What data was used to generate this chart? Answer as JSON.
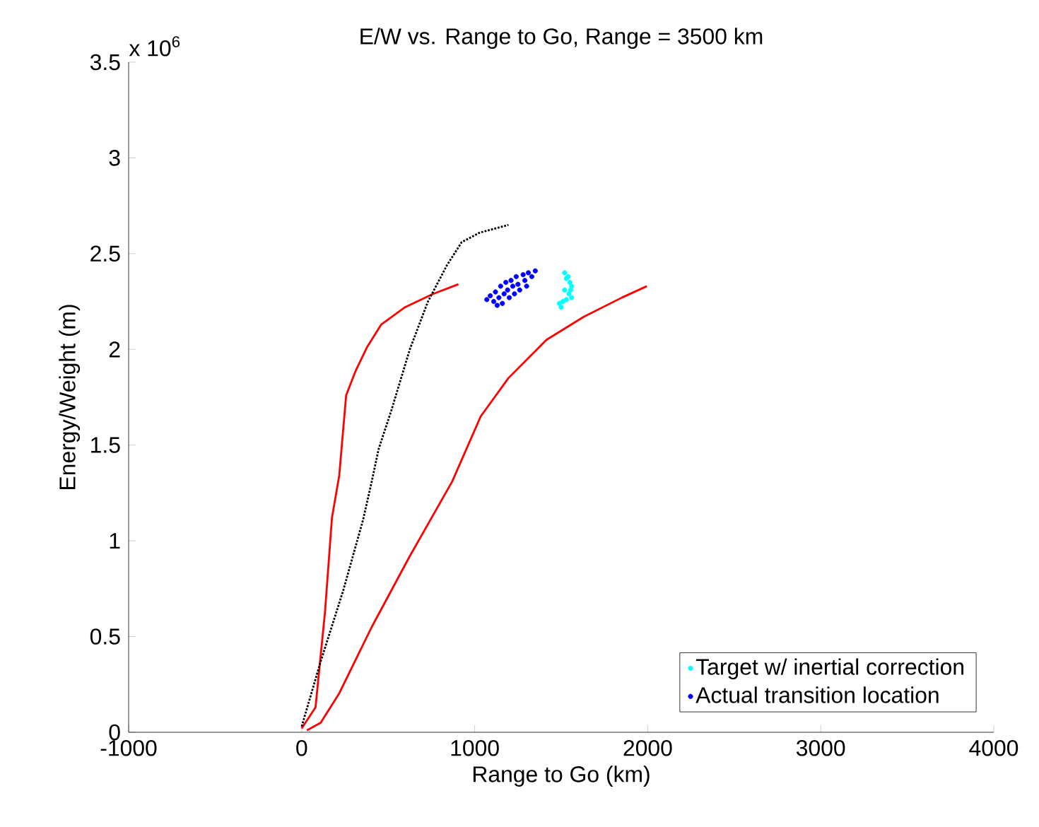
{
  "chart_data": {
    "type": "line",
    "title": "E/W vs. Range to Go, Range = 3500 km",
    "xlabel": "Range to Go (km)",
    "ylabel": "Energy/Weight (m)",
    "annotations": [
      "x 10$^{6}$"
    ],
    "xlim": [
      -1000,
      4000
    ],
    "xticks": [
      -1000,
      0,
      1000,
      2000,
      3000,
      4000
    ],
    "ylim": [
      0,
      3.5
    ],
    "yticks": [
      0,
      0.5,
      1,
      1.5,
      2,
      2.5,
      3,
      3.5
    ],
    "grid": false,
    "legend": "bottom right",
    "series": [
      {
        "color": "#ff0000",
        "line_style": "solid",
        "marker": "none",
        "x": [
          0,
          80,
          135,
          175,
          217,
          257,
          313,
          377,
          460,
          597,
          760,
          906
        ],
        "values": [
          0.02,
          0.13,
          0.63,
          1.12,
          1.34,
          1.76,
          1.89,
          2.01,
          2.13,
          2.22,
          2.29,
          2.34
        ]
      },
      {
        "color": "#000000",
        "line_style": "dotted",
        "marker": "none",
        "x": [
          0,
          110,
          240,
          355,
          405,
          445,
          518,
          625,
          730,
          840,
          925,
          1030,
          1195
        ],
        "values": [
          0.03,
          0.37,
          0.74,
          1.11,
          1.31,
          1.48,
          1.68,
          2.0,
          2.25,
          2.44,
          2.56,
          2.61,
          2.65
        ]
      },
      {
        "color": "#ff0000",
        "line_style": "solid",
        "marker": "none",
        "x": [
          30,
          110,
          215,
          405,
          625,
          870,
          1035,
          1195,
          1415,
          1630,
          1850,
          1995
        ],
        "values": [
          0.01,
          0.05,
          0.2,
          0.55,
          0.92,
          1.31,
          1.65,
          1.85,
          2.05,
          2.17,
          2.27,
          2.33
        ]
      },
      {
        "type": "scatter",
        "name": "Target w/ inertial correction",
        "color": "#00ffff",
        "marker": "circle",
        "x": [
          1520,
          1530,
          1540,
          1550,
          1555,
          1545,
          1560,
          1530,
          1510,
          1500,
          1490,
          1520,
          1560
        ],
        "values": [
          2.4,
          2.37,
          2.38,
          2.35,
          2.31,
          2.29,
          2.27,
          2.26,
          2.25,
          2.22,
          2.24,
          2.31,
          2.33
        ]
      },
      {
        "type": "scatter",
        "name": "Actual transition location",
        "color": "#0000ff",
        "marker": "circle",
        "x": [
          1070,
          1090,
          1110,
          1120,
          1140,
          1150,
          1160,
          1170,
          1180,
          1190,
          1200,
          1210,
          1220,
          1230,
          1240,
          1250,
          1260,
          1280,
          1290,
          1300,
          1310,
          1330,
          1350,
          1130
        ],
        "values": [
          2.26,
          2.28,
          2.25,
          2.3,
          2.27,
          2.33,
          2.24,
          2.29,
          2.35,
          2.31,
          2.27,
          2.36,
          2.33,
          2.29,
          2.38,
          2.34,
          2.31,
          2.39,
          2.36,
          2.33,
          2.4,
          2.38,
          2.41,
          2.23
        ]
      }
    ]
  }
}
